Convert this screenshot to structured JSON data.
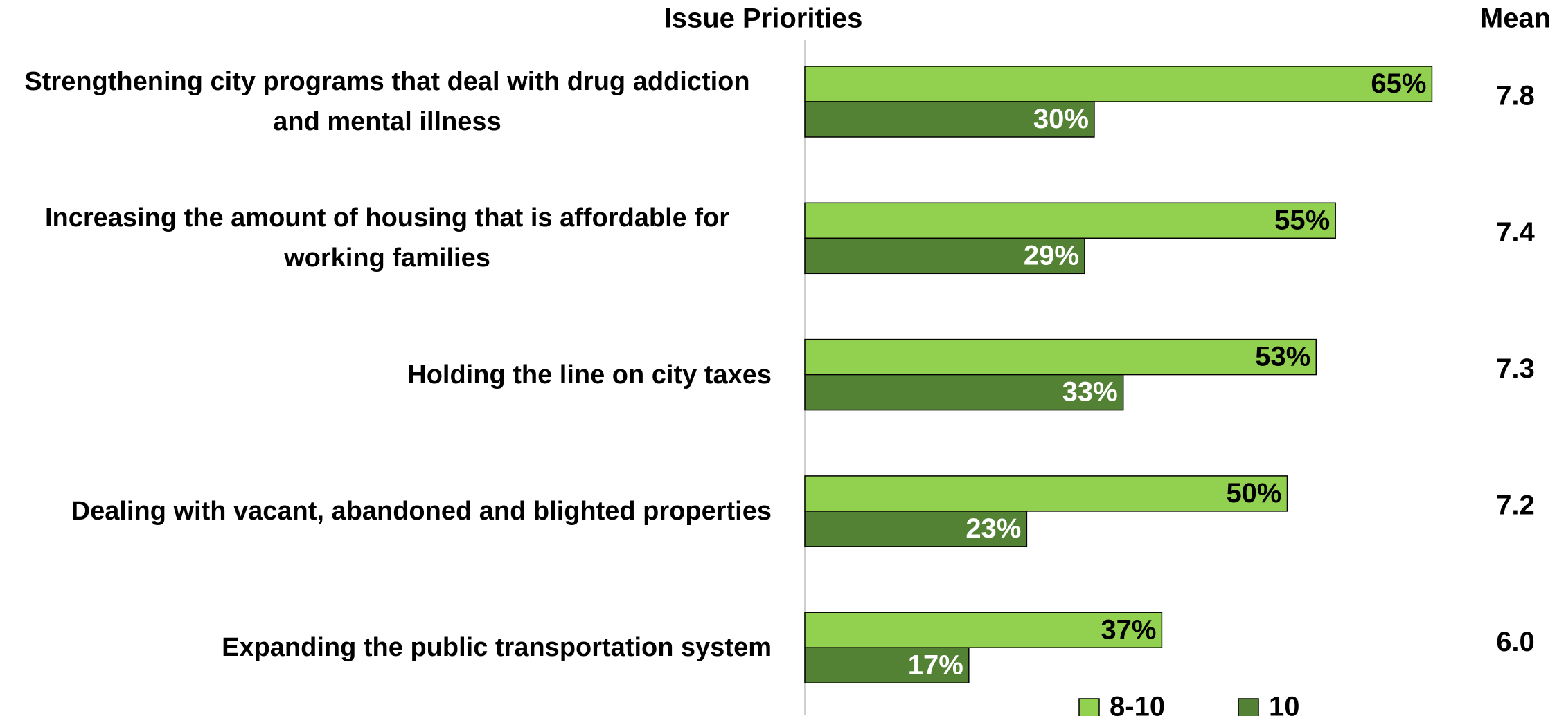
{
  "chart_data": {
    "type": "bar",
    "orientation": "horizontal",
    "title": "Issue Priorities",
    "categories": [
      "Strengthening city programs that deal with drug addiction and mental illness",
      "Increasing the amount of housing that is affordable for working families",
      "Holding the line on city taxes",
      "Dealing with vacant, abandoned and blighted properties",
      "Expanding the public transportation system"
    ],
    "series": [
      {
        "name": "8-10",
        "color": "#92d050",
        "label_color": "#000000",
        "values": [
          65,
          55,
          53,
          50,
          37
        ],
        "value_labels": [
          "65%",
          "55%",
          "53%",
          "50%",
          "37%"
        ]
      },
      {
        "name": "10",
        "color": "#548235",
        "label_color": "#ffffff",
        "values": [
          30,
          29,
          33,
          23,
          17
        ],
        "value_labels": [
          "30%",
          "29%",
          "33%",
          "23%",
          "17%"
        ]
      }
    ],
    "mean": {
      "title": "Mean",
      "values": [
        7.8,
        7.4,
        7.3,
        7.2,
        6.0
      ],
      "value_labels": [
        "7.8",
        "7.4",
        "7.3",
        "7.2",
        "6.0"
      ]
    },
    "xlim": [
      0,
      100
    ],
    "legend": "bottom-right"
  }
}
